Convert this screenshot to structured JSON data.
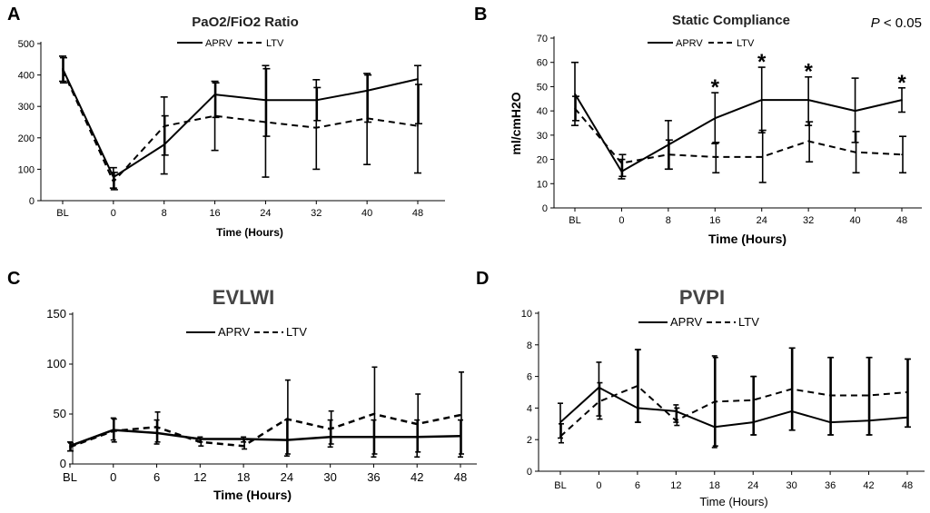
{
  "colors": {
    "line": "#000000",
    "axis": "#000000"
  },
  "chart_data": [
    {
      "id": "A",
      "panel_letter": "A",
      "type": "line",
      "title": "PaO2/FiO2 Ratio",
      "xlabel": "Time (Hours)",
      "ylabel": "",
      "categories": [
        "BL",
        "0",
        "8",
        "16",
        "24",
        "32",
        "40",
        "48"
      ],
      "ylim": [
        0,
        500
      ],
      "yticks": [
        0,
        100,
        200,
        300,
        400,
        500
      ],
      "legend": [
        "APRV",
        "LTV"
      ],
      "series": [
        {
          "name": "APRV",
          "style": "solid",
          "values": [
            420,
            75,
            178,
            338,
            320,
            320,
            350,
            387
          ],
          "upper": [
            460,
            105,
            330,
            380,
            430,
            385,
            405,
            430
          ],
          "lower": [
            380,
            40,
            85,
            160,
            75,
            100,
            115,
            88
          ]
        },
        {
          "name": "LTV",
          "style": "dashed",
          "values": [
            415,
            60,
            237,
            270,
            250,
            232,
            262,
            238
          ],
          "upper": [
            455,
            90,
            270,
            375,
            420,
            360,
            400,
            370
          ],
          "lower": [
            375,
            35,
            145,
            265,
            205,
            255,
            250,
            245
          ]
        }
      ]
    },
    {
      "id": "B",
      "panel_letter": "B",
      "type": "line",
      "title": "Static Compliance",
      "xlabel": "Time (Hours)",
      "ylabel": "ml/cmH2O",
      "categories": [
        "BL",
        "0",
        "8",
        "16",
        "24",
        "32",
        "40",
        "48"
      ],
      "ylim": [
        0,
        70
      ],
      "yticks": [
        0,
        10,
        20,
        30,
        40,
        50,
        60,
        70
      ],
      "legend": [
        "APRV",
        "LTV"
      ],
      "annotation": "P < 0.05",
      "significance": [
        "",
        "",
        "",
        "*",
        "*",
        "*",
        "",
        "*"
      ],
      "series": [
        {
          "name": "APRV",
          "style": "solid",
          "values": [
            47,
            15,
            26,
            37,
            44.5,
            44.5,
            40,
            44.5
          ],
          "upper": [
            60,
            20,
            36,
            47.5,
            58,
            54,
            53.5,
            49.5
          ],
          "lower": [
            34,
            12,
            16,
            26.5,
            31,
            34,
            27,
            39.5
          ]
        },
        {
          "name": "LTV",
          "style": "dashed",
          "values": [
            41,
            18.5,
            22,
            21,
            21,
            27.5,
            23,
            22
          ],
          "upper": [
            46,
            22,
            28,
            27,
            32,
            35.5,
            31.5,
            29.5
          ],
          "lower": [
            36,
            13,
            16,
            14.5,
            10.5,
            19,
            14.5,
            14.5
          ]
        }
      ]
    },
    {
      "id": "C",
      "panel_letter": "C",
      "type": "line",
      "title": "EVLWI",
      "xlabel": "Time (Hours)",
      "ylabel": "",
      "categories": [
        "BL",
        "0",
        "6",
        "12",
        "18",
        "24",
        "30",
        "36",
        "42",
        "48"
      ],
      "ylim": [
        0,
        150
      ],
      "yticks": [
        0,
        50,
        100,
        150
      ],
      "legend": [
        "APRV",
        "LTV"
      ],
      "series": [
        {
          "name": "APRV",
          "style": "solid",
          "values": [
            18,
            34,
            31,
            25,
            25,
            24,
            27,
            27,
            27,
            28
          ],
          "upper": [
            22,
            46,
            44,
            27,
            27,
            44,
            44,
            44,
            44,
            44
          ],
          "lower": [
            13,
            24,
            20,
            22,
            22,
            8,
            17,
            7,
            7,
            7
          ]
        },
        {
          "name": "LTV",
          "style": "dashed",
          "values": [
            17,
            33,
            37,
            22,
            18,
            45,
            35,
            50,
            40,
            49
          ],
          "upper": [
            21,
            45,
            52,
            25,
            25,
            84,
            53,
            97,
            70,
            92
          ],
          "lower": [
            13,
            22,
            22,
            18,
            15,
            10,
            20,
            10,
            12,
            10
          ]
        }
      ]
    },
    {
      "id": "D",
      "panel_letter": "D",
      "type": "line",
      "title": "PVPI",
      "xlabel": "Time (Hours)",
      "ylabel": "",
      "categories": [
        "BL",
        "0",
        "6",
        "12",
        "18",
        "24",
        "30",
        "36",
        "42",
        "48"
      ],
      "ylim": [
        0,
        10
      ],
      "yticks": [
        0,
        2,
        4,
        6,
        8,
        10
      ],
      "legend": [
        "APRV",
        "LTV"
      ],
      "series": [
        {
          "name": "APRV",
          "style": "solid",
          "values": [
            3.1,
            5.3,
            4.0,
            3.8,
            2.8,
            3.1,
            3.8,
            3.1,
            3.2,
            3.4
          ],
          "upper": [
            4.3,
            6.9,
            7.7,
            4.2,
            7.3,
            6.0,
            7.8,
            7.2,
            7.2,
            7.1
          ],
          "lower": [
            2.1,
            3.5,
            3.1,
            3.1,
            1.5,
            2.3,
            2.6,
            2.3,
            2.3,
            2.8
          ]
        },
        {
          "name": "LTV",
          "style": "dashed",
          "values": [
            2.2,
            4.4,
            5.4,
            3.2,
            4.4,
            4.5,
            5.2,
            4.8,
            4.8,
            5.0
          ],
          "upper": [
            3.0,
            5.6,
            7.7,
            4.0,
            7.2,
            6.0,
            7.8,
            7.2,
            7.2,
            7.1
          ],
          "lower": [
            1.8,
            3.3,
            3.1,
            2.9,
            1.6,
            2.3,
            2.6,
            2.3,
            2.3,
            2.8
          ]
        }
      ]
    }
  ]
}
